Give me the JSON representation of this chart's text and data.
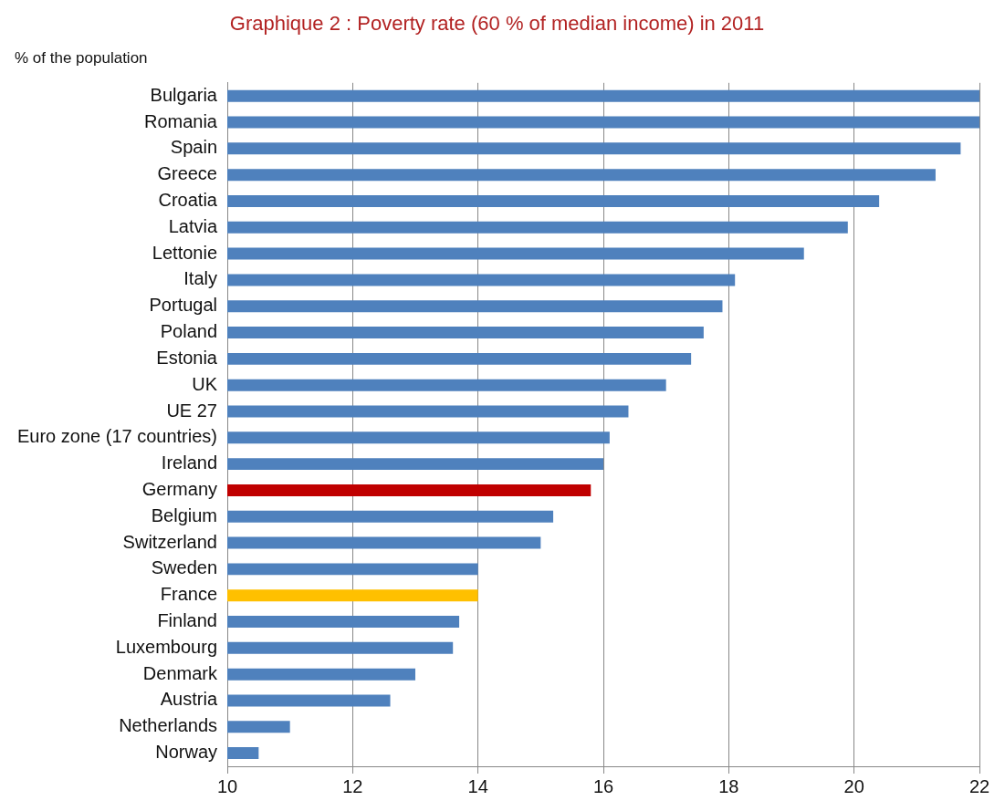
{
  "chart_data": {
    "type": "bar",
    "orientation": "horizontal",
    "title": "Graphique 2 : Poverty rate (60 % of median income) in 2011",
    "subtitle": "% of the population",
    "categories": [
      "Bulgaria",
      "Romania",
      "Spain",
      "Greece",
      "Croatia",
      "Latvia",
      "Lettonie",
      "Italy",
      "Portugal",
      "Poland",
      "Estonia",
      "UK",
      "UE 27",
      "Euro zone (17 countries)",
      "Ireland",
      "Germany",
      "Belgium",
      "Switzerland",
      "Sweden",
      "France",
      "Finland",
      "Luxembourg",
      "Denmark",
      "Austria",
      "Netherlands",
      "Norway"
    ],
    "values": [
      22.0,
      22.0,
      21.7,
      21.3,
      20.4,
      19.9,
      19.2,
      18.1,
      17.9,
      17.6,
      17.4,
      17.0,
      16.4,
      16.1,
      16.0,
      15.8,
      15.2,
      15.0,
      14.0,
      14.0,
      13.7,
      13.6,
      13.0,
      12.6,
      11.0,
      10.5
    ],
    "colors": [
      "#4f81bd",
      "#4f81bd",
      "#4f81bd",
      "#4f81bd",
      "#4f81bd",
      "#4f81bd",
      "#4f81bd",
      "#4f81bd",
      "#4f81bd",
      "#4f81bd",
      "#4f81bd",
      "#4f81bd",
      "#4f81bd",
      "#4f81bd",
      "#4f81bd",
      "#c00000",
      "#4f81bd",
      "#4f81bd",
      "#4f81bd",
      "#ffc000",
      "#4f81bd",
      "#4f81bd",
      "#4f81bd",
      "#4f81bd",
      "#4f81bd",
      "#4f81bd"
    ],
    "xlim": [
      10,
      22
    ],
    "xticks": [
      10,
      12,
      14,
      16,
      18,
      20,
      22
    ],
    "grid": "x",
    "legend": false
  }
}
